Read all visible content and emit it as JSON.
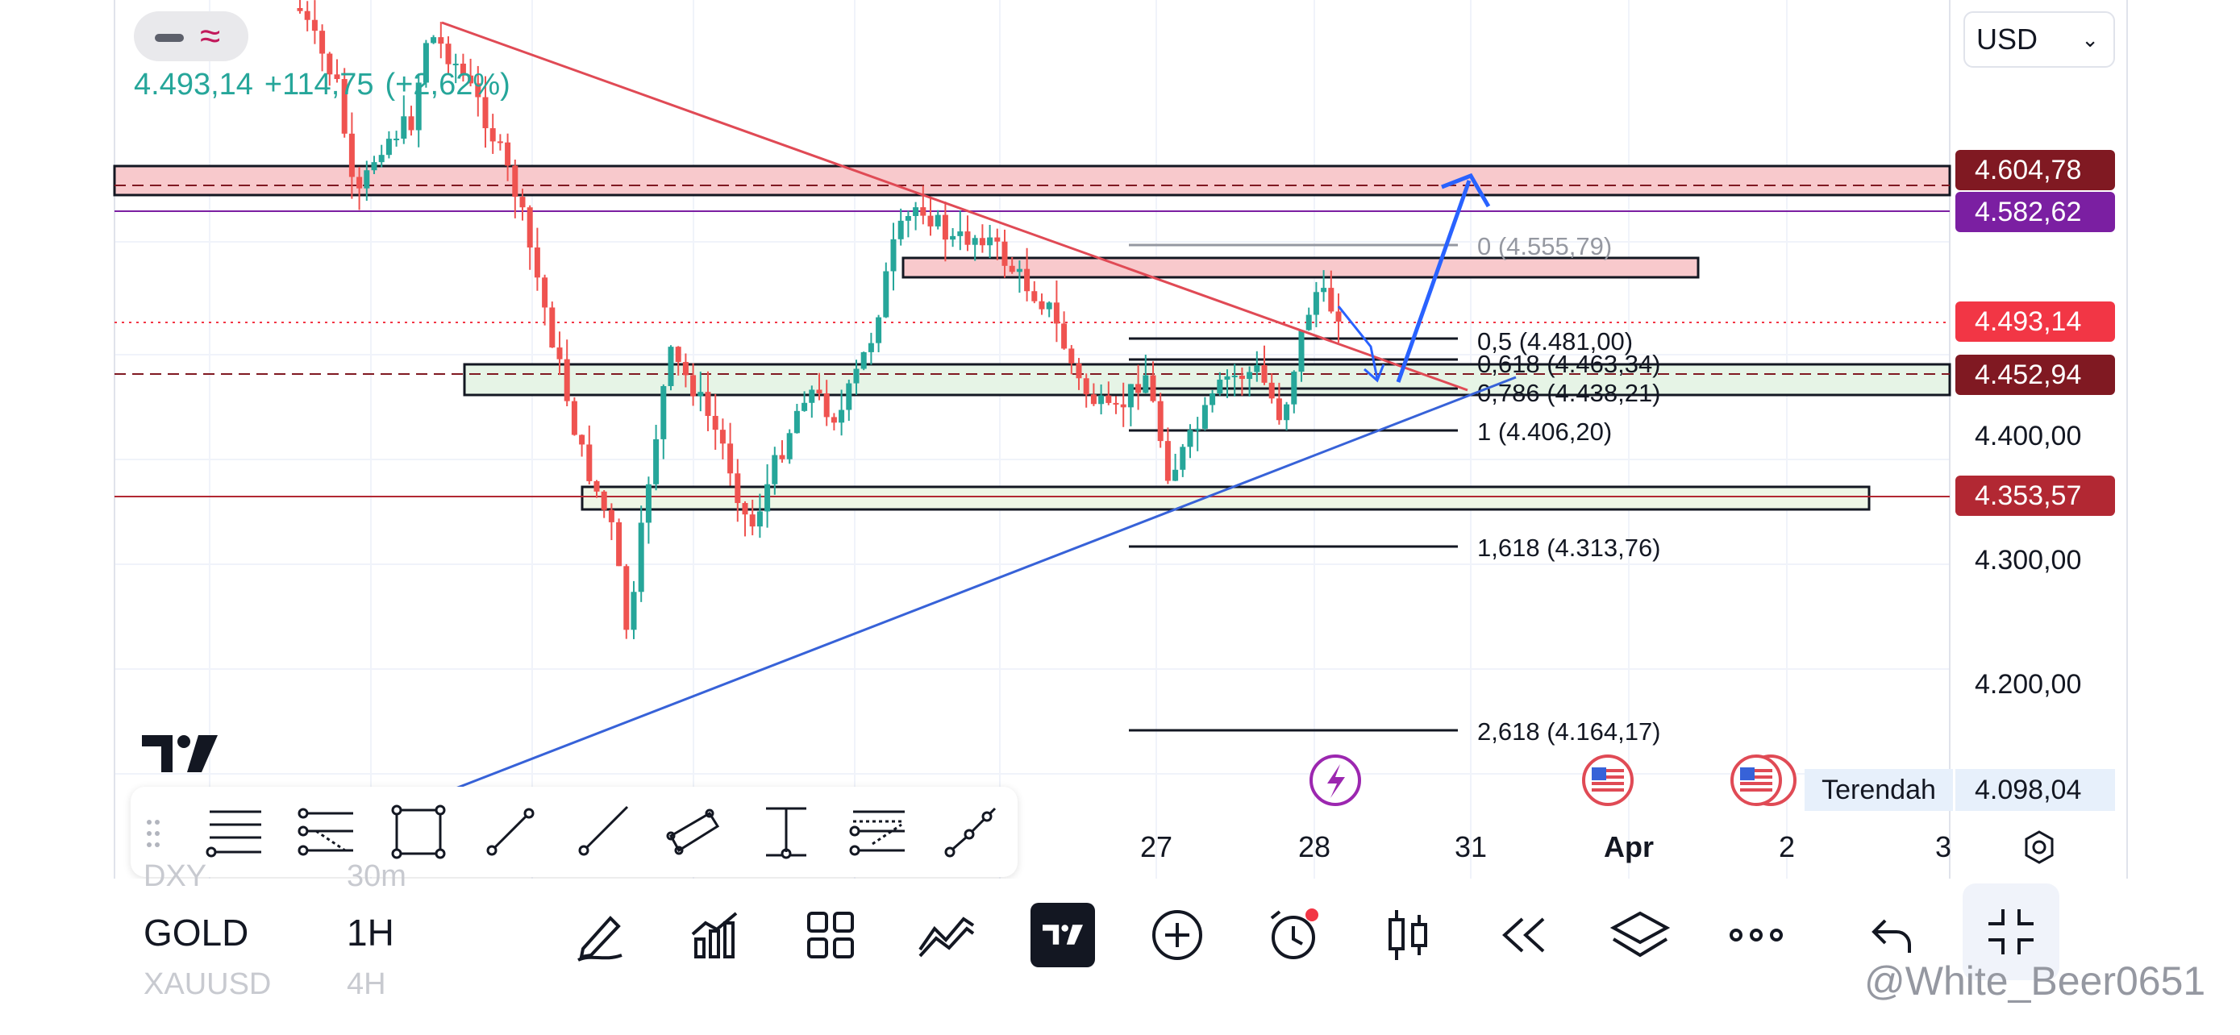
{
  "legend": {
    "last_price": "4.493,14",
    "change": "+114,75",
    "change_pct": "(+2,62%)",
    "colors": {
      "up": "#26a69a",
      "down": "#ef5350",
      "accent": "#c2185b"
    }
  },
  "currency": {
    "value": "USD"
  },
  "price_axis": {
    "tags": [
      {
        "text": "4.604,78",
        "color": "#801922"
      },
      {
        "text": "4.582,62",
        "color": "#7b1fa2"
      },
      {
        "text": "4.493,14",
        "color": "#f23645"
      },
      {
        "text": "4.452,94",
        "color": "#801922"
      },
      {
        "text": "4.353,57",
        "color": "#b22833"
      }
    ],
    "ticks": [
      "4.400,00",
      "4.300,00",
      "4.200,00"
    ],
    "low_label": "Terendah",
    "low_value": "4.098,04"
  },
  "fib_levels": [
    {
      "label": "0 (4.555,79)"
    },
    {
      "label": "0,5 (4.481,00)"
    },
    {
      "label": "0,618 (4.463,34)"
    },
    {
      "label": "0,786 (4.438,21)"
    },
    {
      "label": "1 (4.406,20)"
    },
    {
      "label": "1,618 (4.313,76)"
    },
    {
      "label": "2,618 (4.164,17)"
    }
  ],
  "time_axis": {
    "labels": [
      "27",
      "28",
      "31",
      "Apr",
      "2",
      "3"
    ]
  },
  "draw_toolbar": {
    "tools": [
      "horizontal-lines-icon",
      "channel-icon",
      "rectangle-icon",
      "trend-line-icon",
      "ray-icon",
      "parallel-channel-icon",
      "measure-icon",
      "fib-retracement-icon",
      "path-icon"
    ]
  },
  "bottom_bar": {
    "symbol": "GOLD",
    "symbol_above": "DXY",
    "symbol_below": "XAUUSD",
    "interval": "1H",
    "interval_above": "30m",
    "interval_below": "4H"
  },
  "watermark": "@White_Beer0651"
}
